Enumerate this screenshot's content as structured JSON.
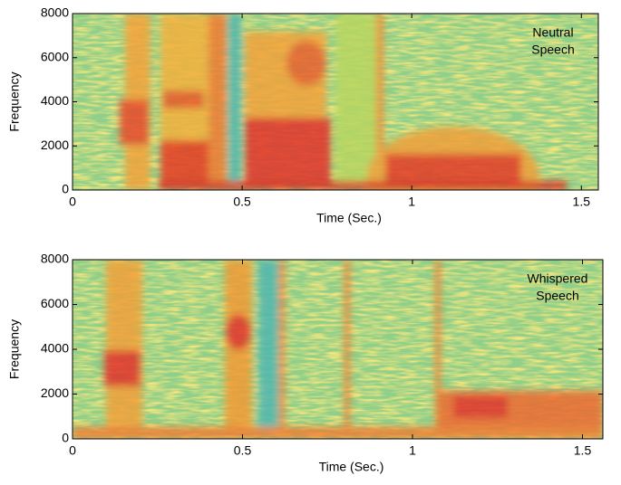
{
  "chart_data": [
    {
      "type": "spectrogram",
      "xlabel": "Time (Sec.)",
      "ylabel": "Frequency",
      "annotation": [
        "Neutral",
        "Speech"
      ],
      "xlim": [
        0,
        1.55
      ],
      "ylim": [
        0,
        8000
      ],
      "xticks": [
        0,
        0.5,
        1,
        1.5
      ],
      "yticks": [
        0,
        2000,
        4000,
        6000,
        8000
      ]
    },
    {
      "type": "spectrogram",
      "xlabel": "Time (Sec.)",
      "ylabel": "Frequency",
      "annotation": [
        "Whispered",
        "Speech"
      ],
      "xlim": [
        0,
        1.56
      ],
      "ylim": [
        0,
        8000
      ],
      "xticks": [
        0,
        0.5,
        1,
        1.5
      ],
      "yticks": [
        0,
        2000,
        4000,
        6000,
        8000
      ]
    }
  ]
}
